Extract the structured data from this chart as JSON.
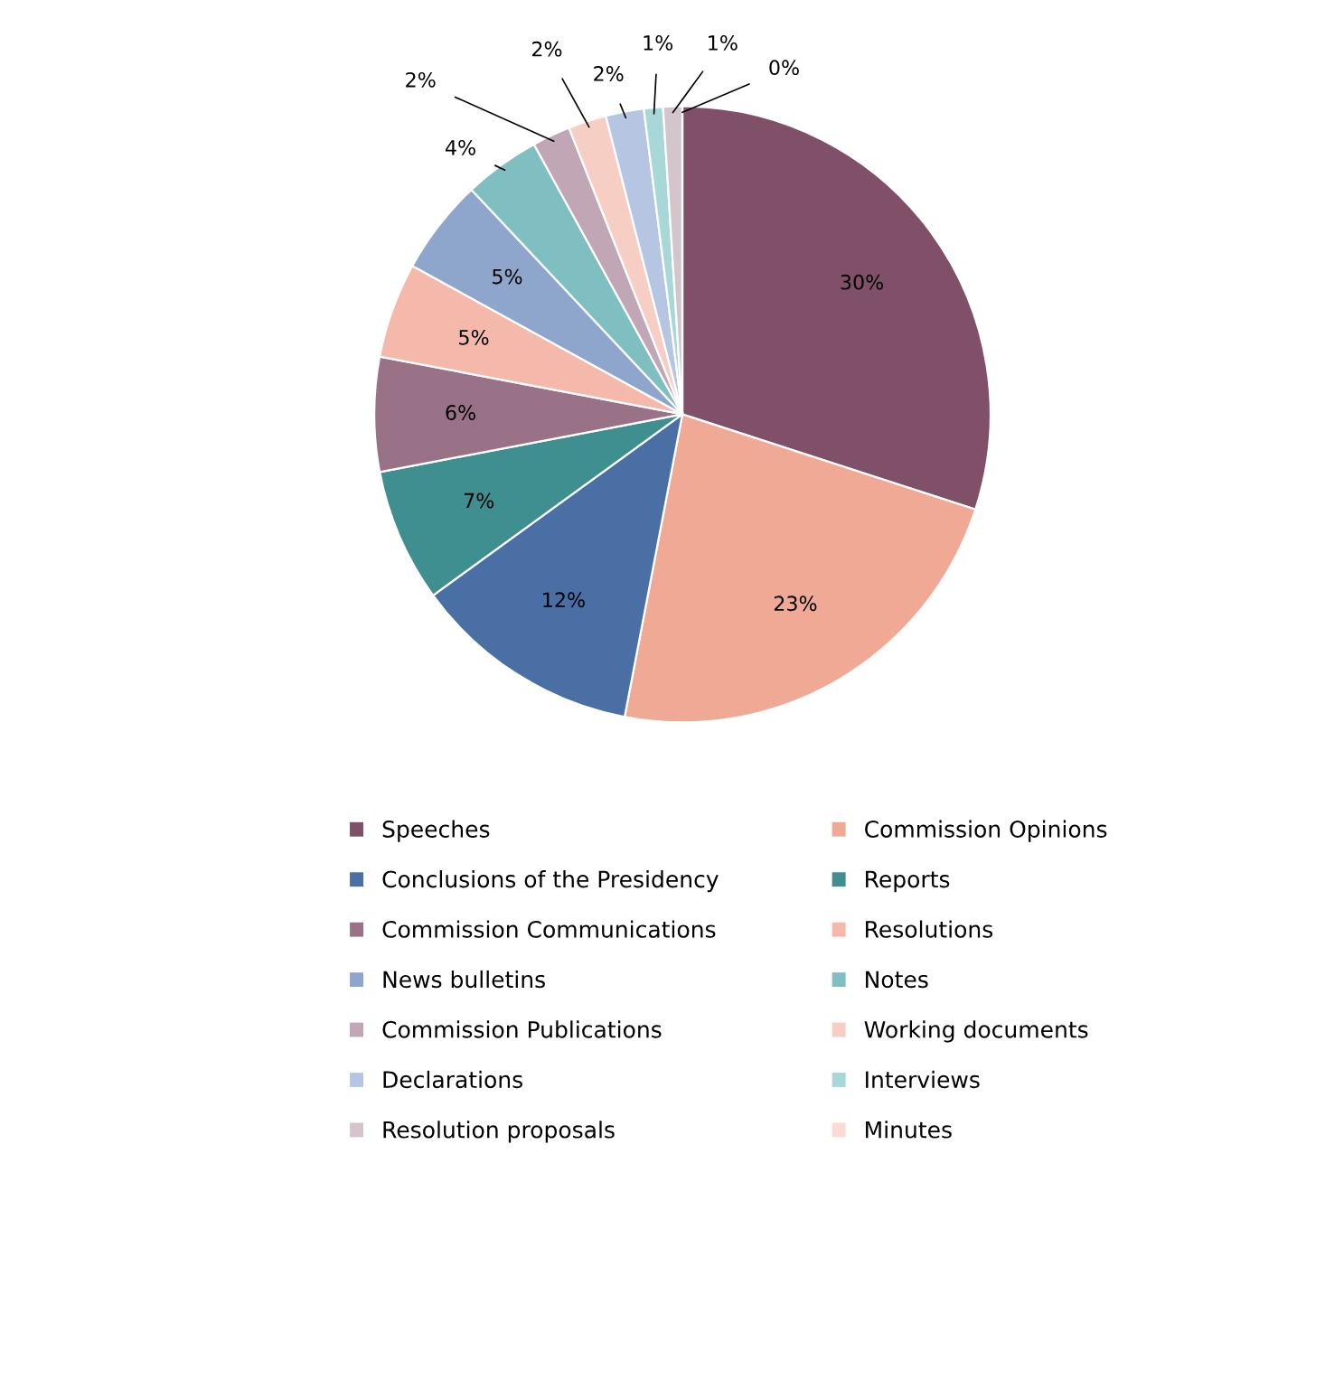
{
  "chart_data": {
    "type": "pie",
    "categories": [
      "Speeches",
      "Commission Opinions",
      "Conclusions of the Presidency",
      "Reports",
      "Commission Communications",
      "Resolutions",
      "News bulletins",
      "Notes",
      "Commission Publications",
      "Working documents",
      "Declarations",
      "Interviews",
      "Resolution proposals",
      "Minutes"
    ],
    "values": [
      30,
      23,
      12,
      7,
      6,
      5,
      5,
      4,
      2,
      2,
      2,
      1,
      1,
      0
    ],
    "colors": [
      "#7f5068",
      "#f0a994",
      "#4a6fa5",
      "#3f8f91",
      "#9a7287",
      "#f4b9aa",
      "#8fa6cc",
      "#7fbfc1",
      "#c1a6b5",
      "#f7cec3",
      "#b6c6e2",
      "#a8d7d8",
      "#d4c4cc",
      "#fadcd4"
    ],
    "value_labels": [
      "30%",
      "23%",
      "12%",
      "7%",
      "6%",
      "5%",
      "5%",
      "4%",
      "2%",
      "2%",
      "2%",
      "1%",
      "1%",
      "0%"
    ],
    "legend": "bottom"
  }
}
